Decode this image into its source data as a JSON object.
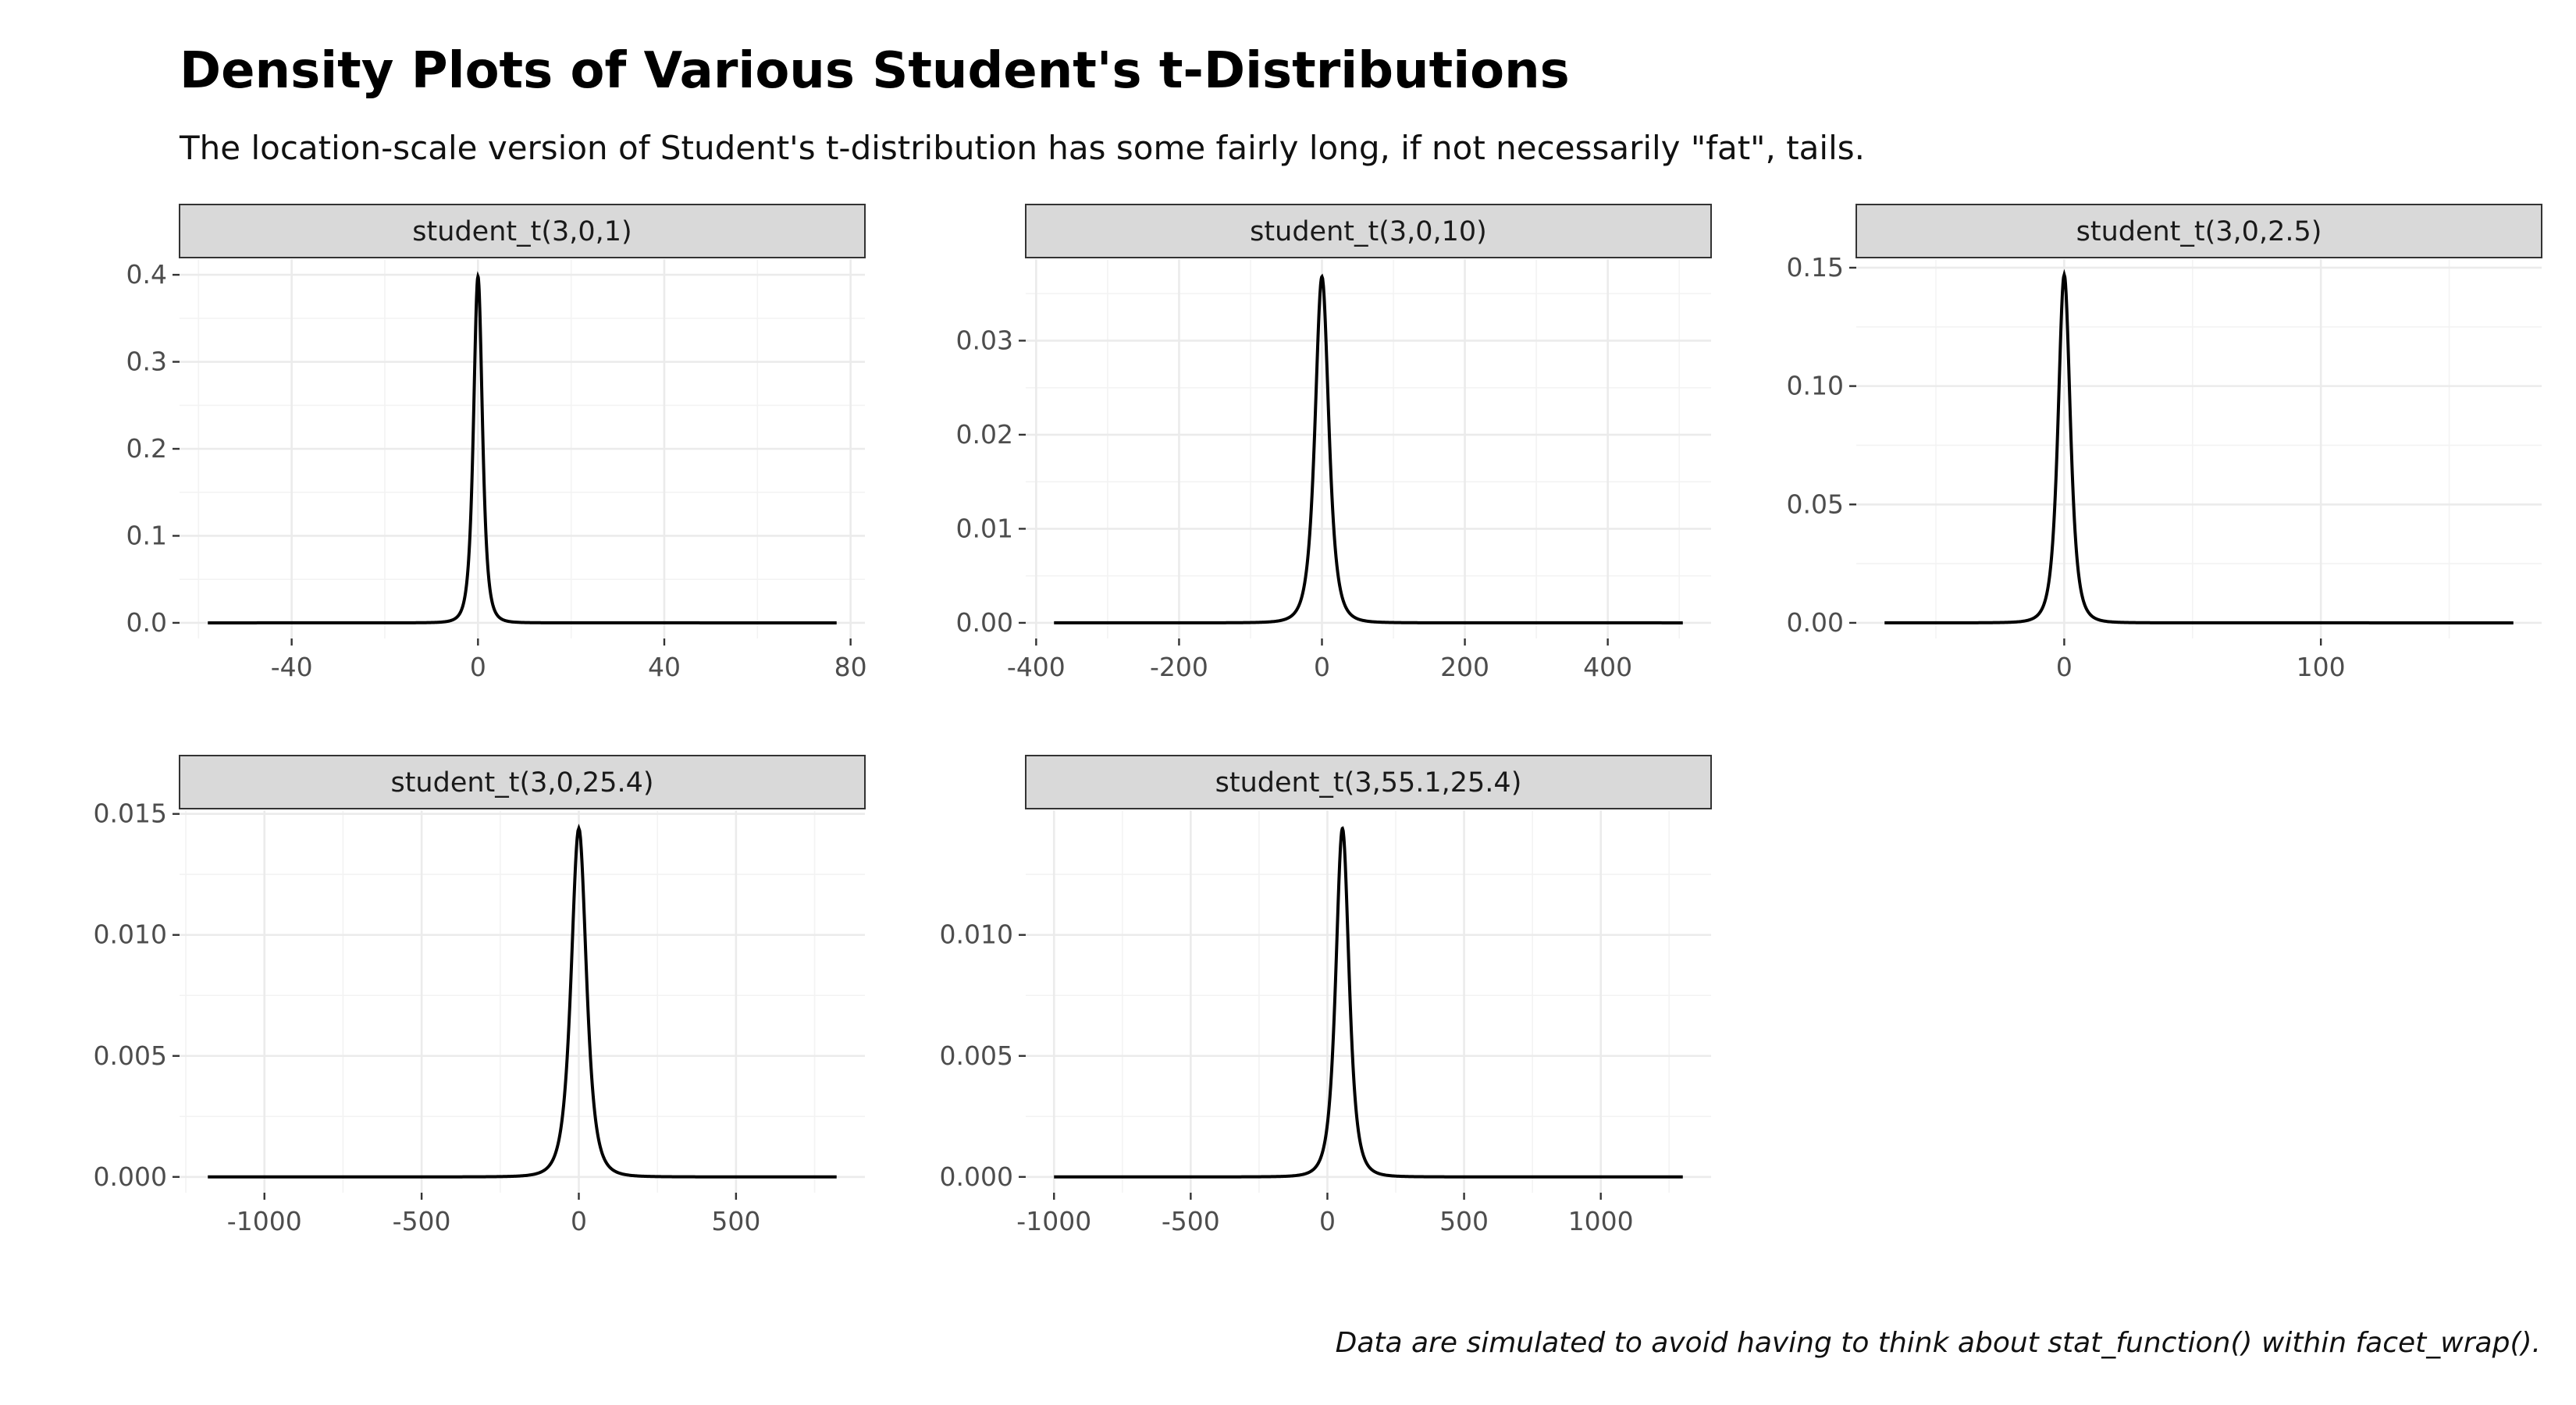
{
  "title": "Density Plots of Various Student's t-Distributions",
  "subtitle": "The location-scale version of Student's t-distribution has some fairly long, if not necessarily \"fat\", tails.",
  "caption": "Data are simulated to avoid having to think about stat_function() within facet_wrap().",
  "chart_data": [
    {
      "type": "line",
      "panel_label": "student_t(3,0,1)",
      "distribution": {
        "df": 3,
        "location": 0,
        "scale": 1
      },
      "xlim": [
        -58,
        77
      ],
      "ylim": [
        0,
        0.4
      ],
      "x_ticks": [
        -40,
        0,
        40,
        80
      ],
      "y_ticks": [
        0.0,
        0.1,
        0.2,
        0.3,
        0.4
      ],
      "x_tick_labels": [
        "-40",
        "0",
        "40",
        "80"
      ],
      "y_tick_labels": [
        "0.0",
        "0.1",
        "0.2",
        "0.3",
        "0.4"
      ],
      "peak": {
        "x": 0,
        "y": 0.398
      }
    },
    {
      "type": "line",
      "panel_label": "student_t(3,0,10)",
      "distribution": {
        "df": 3,
        "location": 0,
        "scale": 10
      },
      "xlim": [
        -375,
        505
      ],
      "ylim": [
        0,
        0.037
      ],
      "x_ticks": [
        -400,
        -200,
        0,
        200,
        400
      ],
      "y_ticks": [
        0.0,
        0.01,
        0.02,
        0.03
      ],
      "x_tick_labels": [
        "-400",
        "-200",
        "0",
        "200",
        "400"
      ],
      "y_tick_labels": [
        "0.00",
        "0.01",
        "0.02",
        "0.03"
      ],
      "peak": {
        "x": 0,
        "y": 0.0368
      }
    },
    {
      "type": "line",
      "panel_label": "student_t(3,0,2.5)",
      "distribution": {
        "df": 3,
        "location": 0,
        "scale": 2.5
      },
      "xlim": [
        -70,
        175
      ],
      "ylim": [
        0,
        0.147
      ],
      "x_ticks": [
        0,
        100
      ],
      "y_ticks": [
        0.0,
        0.05,
        0.1,
        0.15
      ],
      "x_tick_labels": [
        "0",
        "100"
      ],
      "y_tick_labels": [
        "0.00",
        "0.05",
        "0.10",
        "0.15"
      ],
      "peak": {
        "x": 0,
        "y": 0.147
      }
    },
    {
      "type": "line",
      "panel_label": "student_t(3,0,25.4)",
      "distribution": {
        "df": 3,
        "location": 0,
        "scale": 25.4
      },
      "xlim": [
        -1180,
        820
      ],
      "ylim": [
        0,
        0.0145
      ],
      "x_ticks": [
        -1000,
        -500,
        0,
        500
      ],
      "y_ticks": [
        0.0,
        0.005,
        0.01,
        0.015
      ],
      "x_tick_labels": [
        "-1000",
        "-500",
        "0",
        "500"
      ],
      "y_tick_labels": [
        "0.000",
        "0.005",
        "0.010",
        "0.015"
      ],
      "peak": {
        "x": 0,
        "y": 0.0144
      }
    },
    {
      "type": "line",
      "panel_label": "student_t(3,55.1,25.4)",
      "distribution": {
        "df": 3,
        "location": 55.1,
        "scale": 25.4
      },
      "xlim": [
        -1000,
        1300
      ],
      "ylim": [
        0,
        0.0145
      ],
      "x_ticks": [
        -1000,
        -500,
        0,
        500,
        1000
      ],
      "y_ticks": [
        0.0,
        0.005,
        0.01
      ],
      "x_tick_labels": [
        "-1000",
        "-500",
        "0",
        "500",
        "1000"
      ],
      "y_tick_labels": [
        "0.000",
        "0.005",
        "0.010"
      ],
      "peak": {
        "x": 55.1,
        "y": 0.0144
      }
    }
  ]
}
